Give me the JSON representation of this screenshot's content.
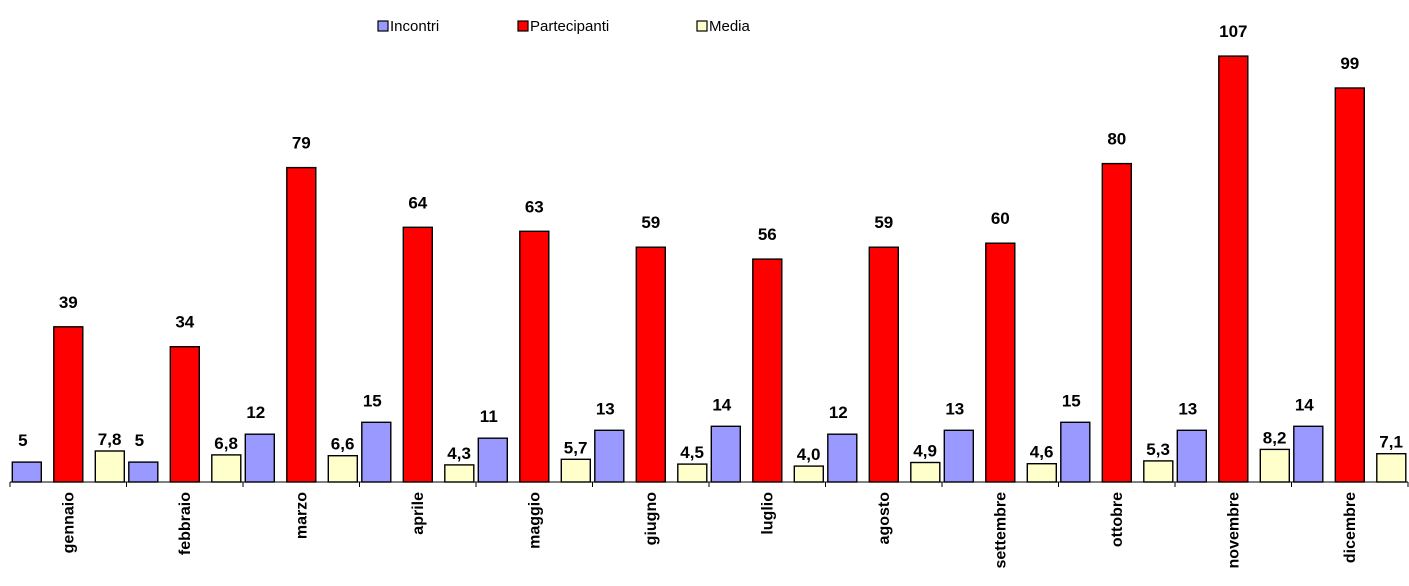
{
  "chart_data": {
    "type": "bar",
    "categories": [
      "gennaio",
      "febbraio",
      "marzo",
      "aprile",
      "maggio",
      "giugno",
      "luglio",
      "agosto",
      "settembre",
      "ottobre",
      "novembre",
      "dicembre"
    ],
    "series": [
      {
        "name": "Incontri",
        "color": "#9999ff",
        "values": [
          5,
          5,
          12,
          15,
          11,
          13,
          14,
          12,
          13,
          15,
          13,
          14
        ],
        "labels": [
          "5",
          "5",
          "12",
          "15",
          "11",
          "13",
          "14",
          "12",
          "13",
          "15",
          "13",
          "14"
        ]
      },
      {
        "name": "Partecipanti",
        "color": "#ff0000",
        "values": [
          39,
          34,
          79,
          64,
          63,
          59,
          56,
          59,
          60,
          80,
          107,
          99
        ],
        "labels": [
          "39",
          "34",
          "79",
          "64",
          "63",
          "59",
          "56",
          "59",
          "60",
          "80",
          "107",
          "99"
        ]
      },
      {
        "name": "Media",
        "color": "#ffffcc",
        "values": [
          7.8,
          6.8,
          6.6,
          4.3,
          5.7,
          4.5,
          4.0,
          4.9,
          4.6,
          5.3,
          8.2,
          7.1
        ],
        "labels": [
          "7,8",
          "6,8",
          "6,6",
          "4,3",
          "5,7",
          "4,5",
          "4,0",
          "4,9",
          "4,6",
          "5,3",
          "8,2",
          "7,1"
        ]
      }
    ],
    "title": "",
    "xlabel": "",
    "ylabel": "",
    "ylim": [
      0,
      110
    ],
    "grid": false,
    "legend_position": "top-center"
  }
}
